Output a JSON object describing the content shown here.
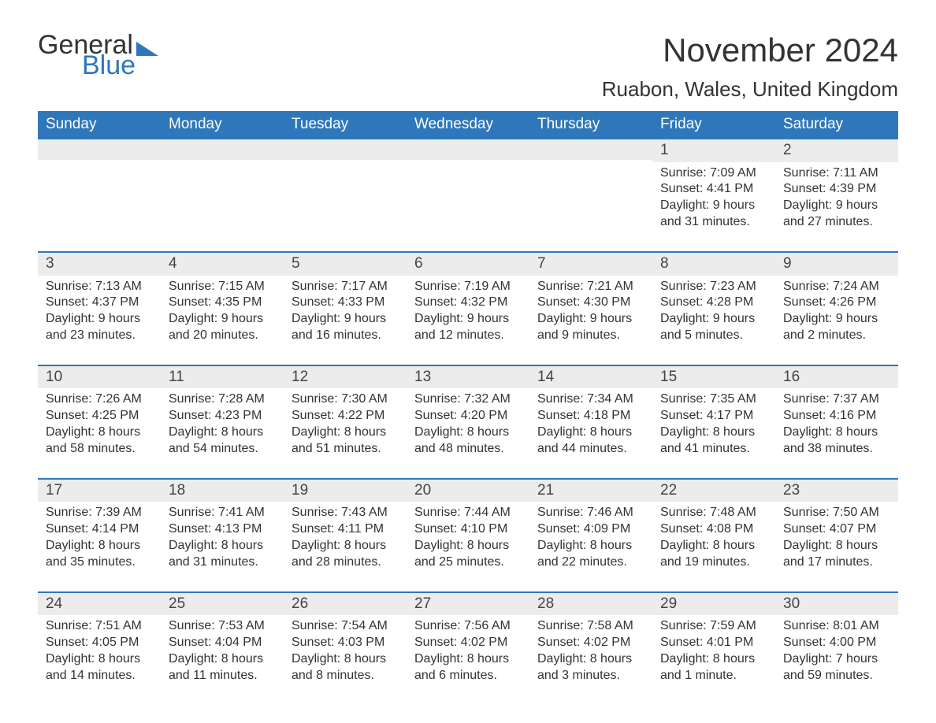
{
  "logo": {
    "text_general": "General",
    "text_blue": "Blue",
    "accent_color": "#2f77bb"
  },
  "header": {
    "month_title": "November 2024",
    "location": "Ruabon, Wales, United Kingdom"
  },
  "colors": {
    "header_bg": "#2f77bb",
    "header_text": "#ffffff",
    "row_separator": "#2f77bb",
    "daynum_bg": "#ececec",
    "body_text": "#333333",
    "background": "#ffffff"
  },
  "typography": {
    "title_fontsize_pt": 32,
    "location_fontsize_pt": 20,
    "header_fontsize_pt": 14,
    "cell_fontsize_pt": 12
  },
  "calendar": {
    "type": "table",
    "days_of_week": [
      "Sunday",
      "Monday",
      "Tuesday",
      "Wednesday",
      "Thursday",
      "Friday",
      "Saturday"
    ],
    "weeks": [
      [
        null,
        null,
        null,
        null,
        null,
        {
          "n": "1",
          "sunrise": "Sunrise: 7:09 AM",
          "sunset": "Sunset: 4:41 PM",
          "d1": "Daylight: 9 hours",
          "d2": "and 31 minutes."
        },
        {
          "n": "2",
          "sunrise": "Sunrise: 7:11 AM",
          "sunset": "Sunset: 4:39 PM",
          "d1": "Daylight: 9 hours",
          "d2": "and 27 minutes."
        }
      ],
      [
        {
          "n": "3",
          "sunrise": "Sunrise: 7:13 AM",
          "sunset": "Sunset: 4:37 PM",
          "d1": "Daylight: 9 hours",
          "d2": "and 23 minutes."
        },
        {
          "n": "4",
          "sunrise": "Sunrise: 7:15 AM",
          "sunset": "Sunset: 4:35 PM",
          "d1": "Daylight: 9 hours",
          "d2": "and 20 minutes."
        },
        {
          "n": "5",
          "sunrise": "Sunrise: 7:17 AM",
          "sunset": "Sunset: 4:33 PM",
          "d1": "Daylight: 9 hours",
          "d2": "and 16 minutes."
        },
        {
          "n": "6",
          "sunrise": "Sunrise: 7:19 AM",
          "sunset": "Sunset: 4:32 PM",
          "d1": "Daylight: 9 hours",
          "d2": "and 12 minutes."
        },
        {
          "n": "7",
          "sunrise": "Sunrise: 7:21 AM",
          "sunset": "Sunset: 4:30 PM",
          "d1": "Daylight: 9 hours",
          "d2": "and 9 minutes."
        },
        {
          "n": "8",
          "sunrise": "Sunrise: 7:23 AM",
          "sunset": "Sunset: 4:28 PM",
          "d1": "Daylight: 9 hours",
          "d2": "and 5 minutes."
        },
        {
          "n": "9",
          "sunrise": "Sunrise: 7:24 AM",
          "sunset": "Sunset: 4:26 PM",
          "d1": "Daylight: 9 hours",
          "d2": "and 2 minutes."
        }
      ],
      [
        {
          "n": "10",
          "sunrise": "Sunrise: 7:26 AM",
          "sunset": "Sunset: 4:25 PM",
          "d1": "Daylight: 8 hours",
          "d2": "and 58 minutes."
        },
        {
          "n": "11",
          "sunrise": "Sunrise: 7:28 AM",
          "sunset": "Sunset: 4:23 PM",
          "d1": "Daylight: 8 hours",
          "d2": "and 54 minutes."
        },
        {
          "n": "12",
          "sunrise": "Sunrise: 7:30 AM",
          "sunset": "Sunset: 4:22 PM",
          "d1": "Daylight: 8 hours",
          "d2": "and 51 minutes."
        },
        {
          "n": "13",
          "sunrise": "Sunrise: 7:32 AM",
          "sunset": "Sunset: 4:20 PM",
          "d1": "Daylight: 8 hours",
          "d2": "and 48 minutes."
        },
        {
          "n": "14",
          "sunrise": "Sunrise: 7:34 AM",
          "sunset": "Sunset: 4:18 PM",
          "d1": "Daylight: 8 hours",
          "d2": "and 44 minutes."
        },
        {
          "n": "15",
          "sunrise": "Sunrise: 7:35 AM",
          "sunset": "Sunset: 4:17 PM",
          "d1": "Daylight: 8 hours",
          "d2": "and 41 minutes."
        },
        {
          "n": "16",
          "sunrise": "Sunrise: 7:37 AM",
          "sunset": "Sunset: 4:16 PM",
          "d1": "Daylight: 8 hours",
          "d2": "and 38 minutes."
        }
      ],
      [
        {
          "n": "17",
          "sunrise": "Sunrise: 7:39 AM",
          "sunset": "Sunset: 4:14 PM",
          "d1": "Daylight: 8 hours",
          "d2": "and 35 minutes."
        },
        {
          "n": "18",
          "sunrise": "Sunrise: 7:41 AM",
          "sunset": "Sunset: 4:13 PM",
          "d1": "Daylight: 8 hours",
          "d2": "and 31 minutes."
        },
        {
          "n": "19",
          "sunrise": "Sunrise: 7:43 AM",
          "sunset": "Sunset: 4:11 PM",
          "d1": "Daylight: 8 hours",
          "d2": "and 28 minutes."
        },
        {
          "n": "20",
          "sunrise": "Sunrise: 7:44 AM",
          "sunset": "Sunset: 4:10 PM",
          "d1": "Daylight: 8 hours",
          "d2": "and 25 minutes."
        },
        {
          "n": "21",
          "sunrise": "Sunrise: 7:46 AM",
          "sunset": "Sunset: 4:09 PM",
          "d1": "Daylight: 8 hours",
          "d2": "and 22 minutes."
        },
        {
          "n": "22",
          "sunrise": "Sunrise: 7:48 AM",
          "sunset": "Sunset: 4:08 PM",
          "d1": "Daylight: 8 hours",
          "d2": "and 19 minutes."
        },
        {
          "n": "23",
          "sunrise": "Sunrise: 7:50 AM",
          "sunset": "Sunset: 4:07 PM",
          "d1": "Daylight: 8 hours",
          "d2": "and 17 minutes."
        }
      ],
      [
        {
          "n": "24",
          "sunrise": "Sunrise: 7:51 AM",
          "sunset": "Sunset: 4:05 PM",
          "d1": "Daylight: 8 hours",
          "d2": "and 14 minutes."
        },
        {
          "n": "25",
          "sunrise": "Sunrise: 7:53 AM",
          "sunset": "Sunset: 4:04 PM",
          "d1": "Daylight: 8 hours",
          "d2": "and 11 minutes."
        },
        {
          "n": "26",
          "sunrise": "Sunrise: 7:54 AM",
          "sunset": "Sunset: 4:03 PM",
          "d1": "Daylight: 8 hours",
          "d2": "and 8 minutes."
        },
        {
          "n": "27",
          "sunrise": "Sunrise: 7:56 AM",
          "sunset": "Sunset: 4:02 PM",
          "d1": "Daylight: 8 hours",
          "d2": "and 6 minutes."
        },
        {
          "n": "28",
          "sunrise": "Sunrise: 7:58 AM",
          "sunset": "Sunset: 4:02 PM",
          "d1": "Daylight: 8 hours",
          "d2": "and 3 minutes."
        },
        {
          "n": "29",
          "sunrise": "Sunrise: 7:59 AM",
          "sunset": "Sunset: 4:01 PM",
          "d1": "Daylight: 8 hours",
          "d2": "and 1 minute."
        },
        {
          "n": "30",
          "sunrise": "Sunrise: 8:01 AM",
          "sunset": "Sunset: 4:00 PM",
          "d1": "Daylight: 7 hours",
          "d2": "and 59 minutes."
        }
      ]
    ]
  }
}
